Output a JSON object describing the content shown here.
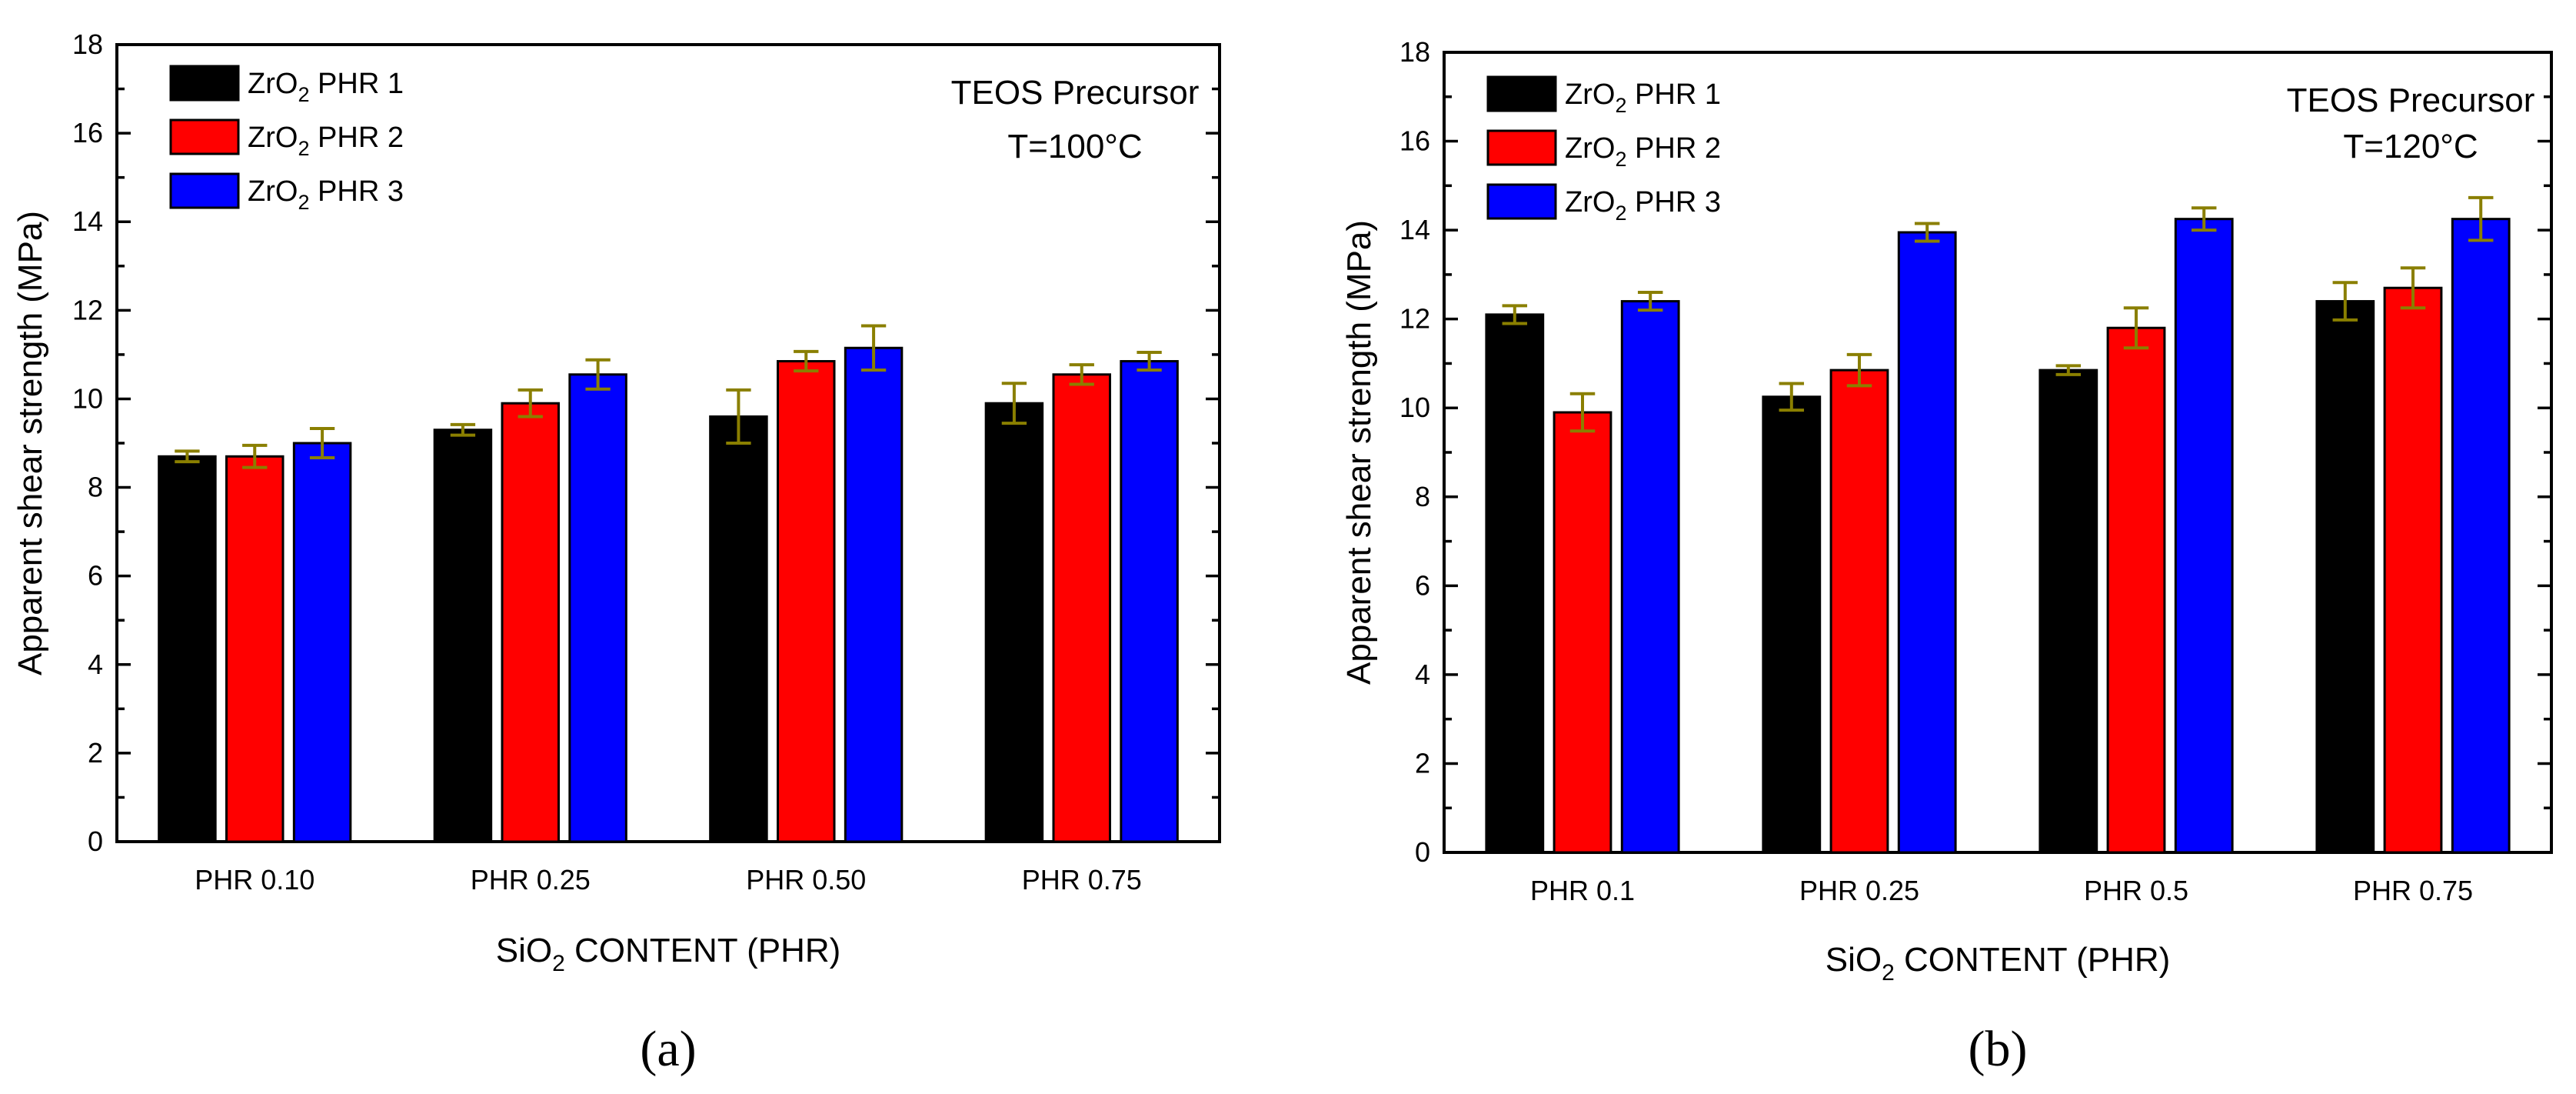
{
  "chart_data": [
    {
      "type": "bar",
      "panel_label": "(a)",
      "ylabel": "Apparent shear strength (MPa)",
      "xlabel": "SiO2 CONTENT (PHR)",
      "xlabel_parts": {
        "pre": "SiO",
        "sub": "2",
        "post": " CONTENT (PHR)"
      },
      "ylim": [
        0,
        18
      ],
      "yticks": [
        "0",
        "2",
        "4",
        "6",
        "8",
        "10",
        "12",
        "14",
        "16",
        "18"
      ],
      "categories": [
        "PHR 0.10",
        "PHR 0.25",
        "PHR 0.50",
        "PHR 0.75"
      ],
      "annotation": [
        "TEOS Precursor",
        "T=100°C"
      ],
      "legend_position": "top-left",
      "series": [
        {
          "name": "ZrO2 PHR 1",
          "name_parts": {
            "pre": "ZrO",
            "sub": "2",
            "post": " PHR 1"
          },
          "color": "#000000",
          "values": [
            8.7,
            9.3,
            9.6,
            9.9
          ],
          "errors": [
            0.12,
            0.12,
            0.6,
            0.45
          ]
        },
        {
          "name": "ZrO2 PHR 2",
          "name_parts": {
            "pre": "ZrO",
            "sub": "2",
            "post": " PHR 2"
          },
          "color": "#ff0000",
          "values": [
            8.7,
            9.9,
            10.85,
            10.55
          ],
          "errors": [
            0.25,
            0.3,
            0.22,
            0.22
          ]
        },
        {
          "name": "ZrO2 PHR 3",
          "name_parts": {
            "pre": "ZrO",
            "sub": "2",
            "post": " PHR 3"
          },
          "color": "#0000ff",
          "values": [
            9.0,
            10.55,
            11.15,
            10.85
          ],
          "errors": [
            0.33,
            0.33,
            0.5,
            0.2
          ]
        }
      ]
    },
    {
      "type": "bar",
      "panel_label": "(b)",
      "ylabel": "Apparent shear strength (MPa)",
      "xlabel": "SiO2 CONTENT (PHR)",
      "xlabel_parts": {
        "pre": "SiO",
        "sub": "2",
        "post": " CONTENT (PHR)"
      },
      "ylim": [
        0,
        18
      ],
      "yticks": [
        "0",
        "2",
        "4",
        "6",
        "8",
        "10",
        "12",
        "14",
        "16",
        "18"
      ],
      "categories": [
        "PHR 0.1",
        "PHR 0.25",
        "PHR 0.5",
        "PHR 0.75"
      ],
      "annotation": [
        "TEOS Precursor",
        "T=120°C"
      ],
      "legend_position": "top-left",
      "series": [
        {
          "name": "ZrO2 PHR 1",
          "name_parts": {
            "pre": "ZrO",
            "sub": "2",
            "post": " PHR 1"
          },
          "color": "#000000",
          "values": [
            12.1,
            10.25,
            10.85,
            12.4
          ],
          "errors": [
            0.2,
            0.3,
            0.1,
            0.42
          ]
        },
        {
          "name": "ZrO2 PHR 2",
          "name_parts": {
            "pre": "ZrO",
            "sub": "2",
            "post": " PHR 2"
          },
          "color": "#ff0000",
          "values": [
            9.9,
            10.85,
            11.8,
            12.7
          ],
          "errors": [
            0.42,
            0.35,
            0.45,
            0.45
          ]
        },
        {
          "name": "ZrO2 PHR 3",
          "name_parts": {
            "pre": "ZrO",
            "sub": "2",
            "post": " PHR 3"
          },
          "color": "#0000ff",
          "values": [
            12.4,
            13.95,
            14.25,
            14.25
          ],
          "errors": [
            0.2,
            0.2,
            0.25,
            0.48
          ]
        }
      ]
    }
  ]
}
